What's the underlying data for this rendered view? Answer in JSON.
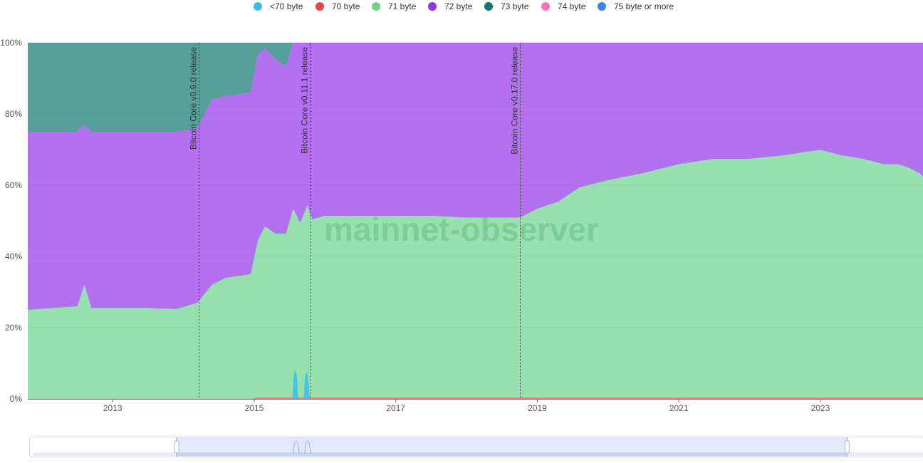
{
  "watermark": "mainnet-observer",
  "legend": [
    {
      "label": "<70 byte",
      "color": "#38bdf8"
    },
    {
      "label": "70 byte",
      "color": "#ef4444"
    },
    {
      "label": "71 byte",
      "color": "#6ad48a"
    },
    {
      "label": "72 byte",
      "color": "#9333ea"
    },
    {
      "label": "73 byte",
      "color": "#0f766e"
    },
    {
      "label": "74 byte",
      "color": "#f472b6"
    },
    {
      "label": "75 byte or more",
      "color": "#3b82f6"
    }
  ],
  "chart_data": {
    "type": "area",
    "stacked": true,
    "x_unit": "year",
    "xlim": [
      2011.8,
      2024.45
    ],
    "ylim": [
      0,
      100
    ],
    "y_ticks": [
      "0%",
      "20%",
      "40%",
      "60%",
      "80%",
      "100%"
    ],
    "x_ticks": [
      "2013",
      "2015",
      "2017",
      "2019",
      "2021",
      "2023"
    ],
    "grid": true,
    "legend_position": "top",
    "x": [
      2011.8,
      2012.5,
      2012.6,
      2012.7,
      2012.8,
      2013.5,
      2013.9,
      2014.2,
      2014.4,
      2014.6,
      2014.95,
      2015.05,
      2015.15,
      2015.3,
      2015.45,
      2015.55,
      2015.65,
      2015.75,
      2015.82,
      2016.0,
      2016.5,
      2017.0,
      2017.5,
      2018.0,
      2018.76,
      2019.0,
      2019.3,
      2019.6,
      2020.0,
      2020.5,
      2021.0,
      2021.5,
      2022.0,
      2022.5,
      2022.8,
      2023.0,
      2023.3,
      2023.6,
      2023.9,
      2024.1,
      2024.25,
      2024.4,
      2024.45
    ],
    "series": [
      {
        "name": "<70 byte",
        "color": "#38bdf8",
        "values": [
          0,
          0,
          0,
          0,
          0,
          0,
          0,
          0,
          0,
          0,
          0,
          0,
          0,
          0,
          0,
          0,
          0,
          0,
          0,
          0,
          0,
          0,
          0,
          0,
          0,
          0,
          0,
          0,
          0,
          0,
          0,
          0,
          0,
          0,
          0,
          0,
          0,
          0,
          0,
          0,
          0,
          0,
          0
        ]
      },
      {
        "name": "70 byte",
        "color": "#ef4444",
        "values": [
          0,
          0,
          0,
          0,
          0,
          0,
          0,
          0,
          0,
          0,
          0,
          0.4,
          0.4,
          0.4,
          0.4,
          0.4,
          0.4,
          0.4,
          0.4,
          0.4,
          0.4,
          0.4,
          0.4,
          0.4,
          0.4,
          0.4,
          0.4,
          0.4,
          0.4,
          0.4,
          0.4,
          0.4,
          0.4,
          0.4,
          0.4,
          0.4,
          0.4,
          0.4,
          0.4,
          0.4,
          0.4,
          0.4,
          0.4
        ]
      },
      {
        "name": "71 byte",
        "color": "#6ad48a",
        "values": [
          25,
          26,
          32,
          25.5,
          25.5,
          25.5,
          25.2,
          27,
          32,
          34,
          35,
          44,
          48,
          46,
          46,
          53,
          49,
          54,
          50,
          51,
          51,
          51,
          51,
          50.5,
          50.5,
          53,
          55,
          59,
          61,
          63,
          65.5,
          67,
          67,
          68,
          69,
          69.5,
          68,
          67,
          65.5,
          65.5,
          64.5,
          63,
          62
        ]
      },
      {
        "name": "72 byte",
        "color": "#9333ea",
        "values": [
          50,
          49,
          45,
          49.5,
          49.5,
          49.5,
          49.8,
          49,
          52,
          51,
          51,
          52,
          50,
          49,
          47,
          46.6,
          50.6,
          45.6,
          49.6,
          48.6,
          48.6,
          48.6,
          48.6,
          49.1,
          49.1,
          46.6,
          44.6,
          40.6,
          38.6,
          36.6,
          34.1,
          32.6,
          32.6,
          31.6,
          30.6,
          30.1,
          31.6,
          32.6,
          34.1,
          34.1,
          35.1,
          36.6,
          37.6
        ]
      },
      {
        "name": "73 byte",
        "color": "#0f766e",
        "values": [
          25,
          25,
          23,
          25,
          25,
          25,
          25,
          24,
          16,
          15,
          14,
          3.6,
          1.6,
          4.6,
          6.6,
          0,
          0,
          0,
          0,
          0,
          0,
          0,
          0,
          0,
          0,
          0,
          0,
          0,
          0,
          0,
          0,
          0,
          0,
          0,
          0,
          0,
          0,
          0,
          0,
          0,
          0,
          0,
          0
        ]
      },
      {
        "name": "74 byte",
        "color": "#f472b6",
        "values": [
          0,
          0,
          0,
          0,
          0,
          0,
          0,
          0,
          0,
          0,
          0,
          0,
          0,
          0,
          0,
          0,
          0,
          0,
          0,
          0,
          0,
          0,
          0,
          0,
          0,
          0,
          0,
          0,
          0,
          0,
          0,
          0,
          0,
          0,
          0,
          0,
          0,
          0,
          0,
          0,
          0,
          0,
          0
        ]
      },
      {
        "name": "75 byte or more",
        "color": "#3b82f6",
        "values": [
          0,
          0,
          0,
          0,
          0,
          0,
          0,
          0,
          0,
          0,
          0,
          0,
          0,
          0,
          0,
          0,
          0,
          0,
          0,
          0,
          0,
          0,
          0,
          0,
          0,
          0,
          0,
          0,
          0,
          0,
          0,
          0,
          0,
          0,
          0,
          0,
          0,
          0,
          0,
          0,
          0,
          0,
          0
        ]
      }
    ],
    "spikes": [
      {
        "x": 2015.58,
        "value": 8,
        "series": "<70 byte"
      },
      {
        "x": 2015.74,
        "value": 7.5,
        "series": "<70 byte"
      }
    ],
    "annotations": [
      {
        "x": 2014.22,
        "label": "Bitcoin Core v0.9.0 release"
      },
      {
        "x": 2015.79,
        "label": "Bitcoin Core v0.11.1 release"
      },
      {
        "x": 2018.76,
        "label": "Bitcoin Core v0.17.0 release"
      }
    ],
    "zoom": {
      "start": 0.165,
      "end": 0.915
    }
  }
}
